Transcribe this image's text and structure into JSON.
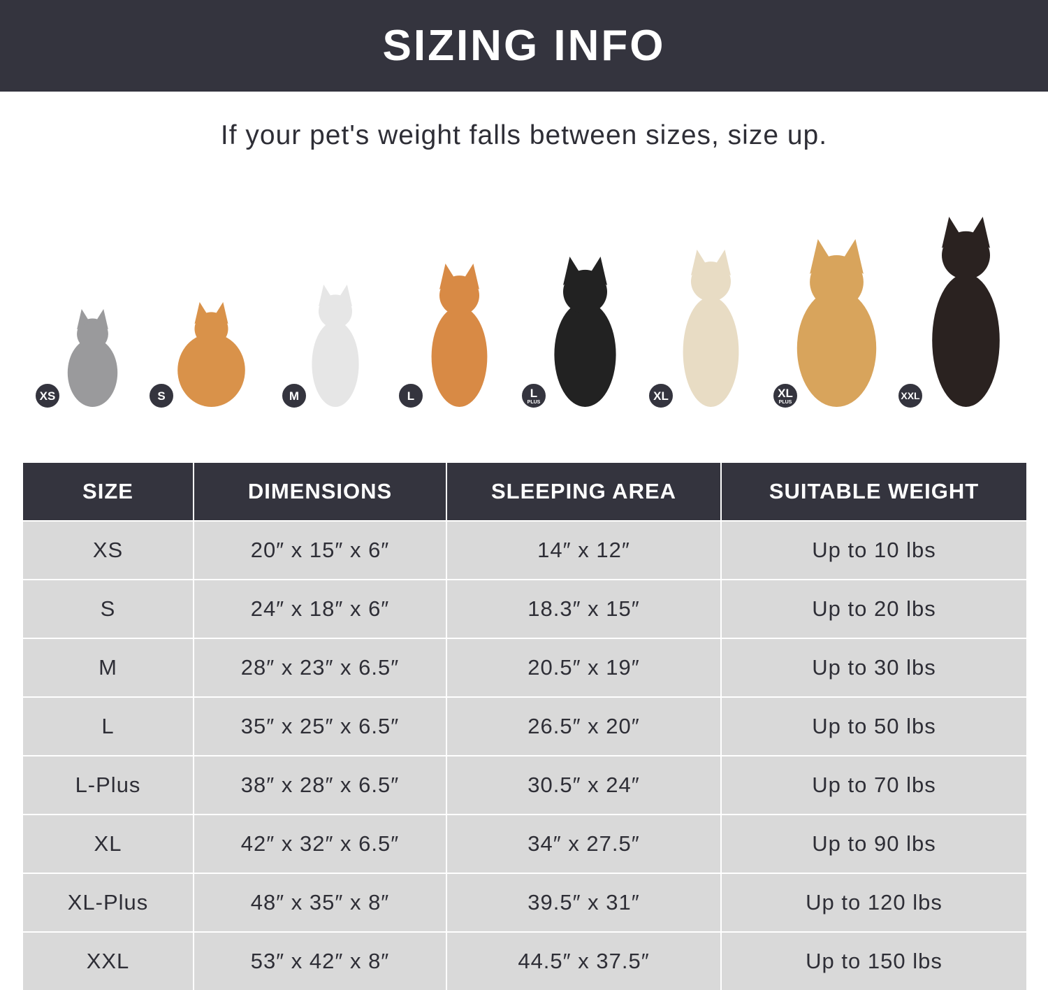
{
  "header": {
    "title": "SIZING INFO"
  },
  "subtitle": "If your pet's weight falls between sizes, size up.",
  "pets": [
    {
      "badge": "XS",
      "badge_sub": "",
      "animal": "grey cat",
      "color": "#9a9a9c"
    },
    {
      "badge": "S",
      "badge_sub": "",
      "animal": "pomeranian",
      "color": "#d9924a"
    },
    {
      "badge": "M",
      "badge_sub": "",
      "animal": "french bulldog",
      "color": "#e6e6e6"
    },
    {
      "badge": "L",
      "badge_sub": "",
      "animal": "shiba inu",
      "color": "#d88a45"
    },
    {
      "badge": "L",
      "badge_sub": "PLUS",
      "animal": "border collie",
      "color": "#222222"
    },
    {
      "badge": "XL",
      "badge_sub": "",
      "animal": "labrador",
      "color": "#e8dcc4"
    },
    {
      "badge": "XL",
      "badge_sub": "PLUS",
      "animal": "golden retriever",
      "color": "#d8a45c"
    },
    {
      "badge": "XXL",
      "badge_sub": "",
      "animal": "doberman",
      "color": "#2a2220"
    }
  ],
  "table": {
    "headers": [
      "SIZE",
      "DIMENSIONS",
      "SLEEPING AREA",
      "SUITABLE WEIGHT"
    ],
    "rows": [
      [
        "XS",
        "20″ x 15″ x 6″",
        "14″ x 12″",
        "Up to 10 lbs"
      ],
      [
        "S",
        "24″ x 18″ x 6″",
        "18.3″ x 15″",
        "Up to 20 lbs"
      ],
      [
        "M",
        "28″ x 23″ x 6.5″",
        "20.5″ x 19″",
        "Up to 30 lbs"
      ],
      [
        "L",
        "35″ x 25″ x 6.5″",
        "26.5″ x 20″",
        "Up to 50 lbs"
      ],
      [
        "L-Plus",
        "38″ x 28″ x 6.5″",
        "30.5″ x 24″",
        "Up to 70 lbs"
      ],
      [
        "XL",
        "42″ x 32″ x 6.5″",
        "34″ x 27.5″",
        "Up to 90 lbs"
      ],
      [
        "XL-Plus",
        "48″ x 35″ x 8″",
        "39.5″ x 31″",
        "Up to 120 lbs"
      ],
      [
        "XXL",
        "53″ x 42″ x 8″",
        "44.5″ x 37.5″",
        "Up to 150 lbs"
      ]
    ]
  }
}
